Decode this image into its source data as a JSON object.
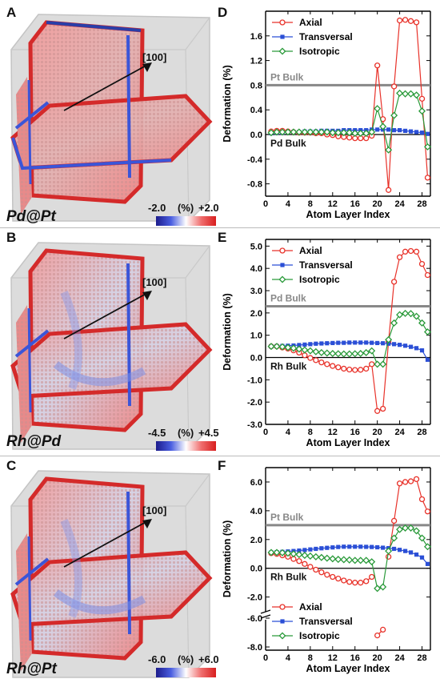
{
  "figure": {
    "colors": {
      "axial": "#e8322a",
      "transversal": "#2b4fd6",
      "isotropic": "#2a9a3a",
      "reference_line": "#888888",
      "strain_low": "#1c1c8c",
      "strain_high": "#d81e1e"
    },
    "panels": [
      {
        "id": "pdpt",
        "render_letter": "A",
        "plot_letter": "D",
        "material": "Pd@Pt",
        "direction_label": "[100]",
        "colorbar": {
          "min_label": "-2.0",
          "unit_label": "(%)",
          "max_label": "+2.0",
          "min": -2.0,
          "max": 2.0
        },
        "icons": [
          "nanocube-render-icon",
          "direction-arrow-icon"
        ]
      },
      {
        "id": "rhpd",
        "render_letter": "B",
        "plot_letter": "E",
        "material": "Rh@Pd",
        "direction_label": "[100]",
        "colorbar": {
          "min_label": "-4.5",
          "unit_label": "(%)",
          "max_label": "+4.5",
          "min": -4.5,
          "max": 4.5
        },
        "icons": [
          "nanocube-render-icon",
          "direction-arrow-icon"
        ]
      },
      {
        "id": "rhpt",
        "render_letter": "C",
        "plot_letter": "F",
        "material": "Rh@Pt",
        "direction_label": "[100]",
        "colorbar": {
          "min_label": "-6.0",
          "unit_label": "(%)",
          "max_label": "+6.0",
          "min": -6.0,
          "max": 6.0
        },
        "icons": [
          "nanocube-render-icon",
          "direction-arrow-icon"
        ]
      }
    ]
  },
  "chart_data": [
    {
      "type": "line",
      "panel": "D",
      "xlabel": "Atom Layer Index",
      "ylabel": "Deformation (%)",
      "xlim": [
        0,
        29.5
      ],
      "ylim": [
        -1.0,
        2.0
      ],
      "xticks": [
        0,
        4,
        8,
        12,
        16,
        20,
        24,
        28
      ],
      "yticks": [
        -0.8,
        -0.4,
        0.0,
        0.4,
        0.8,
        1.2,
        1.6
      ],
      "ytick_labels": [
        "-0.8",
        "-0.4",
        "0.0",
        "0.4",
        "0.8",
        "1.2",
        "1.6"
      ],
      "grid": false,
      "legend_position": "top-left",
      "reference_lines": [
        {
          "label": "Pt Bulk",
          "value": 0.8,
          "label_position": "above"
        },
        {
          "label": "Pd Bulk",
          "value": 0.0,
          "label_position": "below"
        }
      ],
      "x": [
        1,
        2,
        3,
        4,
        5,
        6,
        7,
        8,
        9,
        10,
        11,
        12,
        13,
        14,
        15,
        16,
        17,
        18,
        19,
        20,
        21,
        22,
        23,
        24,
        25,
        26,
        27,
        28,
        29
      ],
      "series": [
        {
          "name": "Axial",
          "marker": "circle",
          "values": [
            0.05,
            0.06,
            0.06,
            0.05,
            0.04,
            0.03,
            0.03,
            0.03,
            0.02,
            0.02,
            0.0,
            -0.01,
            -0.03,
            -0.04,
            -0.05,
            -0.06,
            -0.06,
            -0.06,
            -0.02,
            1.12,
            0.25,
            -0.9,
            0.78,
            1.85,
            1.86,
            1.84,
            1.82,
            0.58,
            -0.7
          ]
        },
        {
          "name": "Transversal",
          "marker": "square",
          "values": [
            0.02,
            0.03,
            0.03,
            0.04,
            0.04,
            0.04,
            0.05,
            0.05,
            0.05,
            0.06,
            0.06,
            0.06,
            0.06,
            0.07,
            0.07,
            0.07,
            0.07,
            0.07,
            0.08,
            0.08,
            0.08,
            0.08,
            0.07,
            0.07,
            0.06,
            0.05,
            0.04,
            0.03,
            0.01
          ]
        },
        {
          "name": "Isotropic",
          "marker": "diamond",
          "values": [
            0.03,
            0.04,
            0.04,
            0.04,
            0.04,
            0.04,
            0.04,
            0.04,
            0.04,
            0.04,
            0.04,
            0.03,
            0.03,
            0.03,
            0.03,
            0.02,
            0.02,
            0.02,
            0.04,
            0.42,
            0.13,
            -0.25,
            0.31,
            0.67,
            0.66,
            0.66,
            0.64,
            0.38,
            -0.2
          ]
        }
      ]
    },
    {
      "type": "line",
      "panel": "E",
      "xlabel": "Atom Layer Index",
      "ylabel": "Deformation (%)",
      "xlim": [
        0,
        29.5
      ],
      "ylim": [
        -3.0,
        5.3
      ],
      "xticks": [
        0,
        4,
        8,
        12,
        16,
        20,
        24,
        28
      ],
      "yticks": [
        -3.0,
        -2.0,
        -1.0,
        0.0,
        1.0,
        2.0,
        3.0,
        4.0,
        5.0
      ],
      "ytick_labels": [
        "-3.0",
        "-2.0",
        "-1.0",
        "0.0",
        "1.0",
        "2.0",
        "3.0",
        "4.0",
        "5.0"
      ],
      "grid": false,
      "legend_position": "top-left",
      "reference_lines": [
        {
          "label": "Pd Bulk",
          "value": 2.3,
          "label_position": "above"
        },
        {
          "label": "Rh Bulk",
          "value": 0.0,
          "label_position": "below"
        }
      ],
      "x": [
        1,
        2,
        3,
        4,
        5,
        6,
        7,
        8,
        9,
        10,
        11,
        12,
        13,
        14,
        15,
        16,
        17,
        18,
        19,
        20,
        21,
        22,
        23,
        24,
        25,
        26,
        27,
        28,
        29
      ],
      "series": [
        {
          "name": "Axial",
          "marker": "circle",
          "values": [
            0.5,
            0.5,
            0.45,
            0.4,
            0.32,
            0.22,
            0.1,
            -0.02,
            -0.12,
            -0.22,
            -0.3,
            -0.38,
            -0.44,
            -0.5,
            -0.54,
            -0.56,
            -0.55,
            -0.5,
            -0.3,
            -2.4,
            -2.3,
            0.7,
            3.4,
            4.5,
            4.75,
            4.78,
            4.75,
            4.2,
            3.7
          ]
        },
        {
          "name": "Transversal",
          "marker": "square",
          "values": [
            0.5,
            0.51,
            0.52,
            0.53,
            0.54,
            0.56,
            0.58,
            0.6,
            0.62,
            0.63,
            0.64,
            0.65,
            0.66,
            0.66,
            0.67,
            0.67,
            0.67,
            0.67,
            0.66,
            0.65,
            0.64,
            0.62,
            0.6,
            0.57,
            0.53,
            0.48,
            0.42,
            0.32,
            -0.1
          ]
        },
        {
          "name": "Isotropic",
          "marker": "diamond",
          "values": [
            0.5,
            0.5,
            0.48,
            0.45,
            0.42,
            0.38,
            0.34,
            0.3,
            0.26,
            0.22,
            0.2,
            0.18,
            0.17,
            0.16,
            0.16,
            0.17,
            0.18,
            0.22,
            0.3,
            -0.3,
            -0.3,
            0.8,
            1.55,
            1.92,
            1.98,
            1.97,
            1.85,
            1.55,
            1.15
          ]
        }
      ]
    },
    {
      "type": "line",
      "panel": "F",
      "xlabel": "Atom Layer Index",
      "ylabel": "Deformation (%)",
      "xlim": [
        0,
        29.5
      ],
      "ylim": [
        -2.8,
        7.0
      ],
      "y_axis_break": {
        "after_tick": "-2.0",
        "lower_ticks": [
          "-6.0",
          "-8.0"
        ]
      },
      "xticks": [
        0,
        4,
        8,
        12,
        16,
        20,
        24,
        28
      ],
      "yticks": [
        -2.0,
        0.0,
        2.0,
        4.0,
        6.0
      ],
      "ytick_labels": [
        "-2.0",
        "0.0",
        "2.0",
        "4.0",
        "6.0"
      ],
      "grid": false,
      "legend_position": "bottom-left",
      "reference_lines": [
        {
          "label": "Pt Bulk",
          "value": 3.0,
          "label_position": "above"
        },
        {
          "label": "Rh Bulk",
          "value": 0.0,
          "label_position": "below"
        }
      ],
      "x": [
        1,
        2,
        3,
        4,
        5,
        6,
        7,
        8,
        9,
        10,
        11,
        12,
        13,
        14,
        15,
        16,
        17,
        18,
        19,
        20,
        21,
        22,
        23,
        24,
        25,
        26,
        27,
        28,
        29
      ],
      "series": [
        {
          "name": "Axial",
          "marker": "circle",
          "values": [
            1.05,
            1.0,
            0.9,
            0.8,
            0.65,
            0.5,
            0.3,
            0.1,
            -0.1,
            -0.28,
            -0.45,
            -0.6,
            -0.72,
            -0.85,
            -0.95,
            -1.0,
            -1.0,
            -0.9,
            -0.6,
            -7.2,
            -6.8,
            0.8,
            3.3,
            5.9,
            6.0,
            6.05,
            6.2,
            4.8,
            3.95
          ]
        },
        {
          "name": "Transversal",
          "marker": "square",
          "values": [
            1.1,
            1.12,
            1.14,
            1.17,
            1.2,
            1.23,
            1.27,
            1.31,
            1.35,
            1.39,
            1.42,
            1.45,
            1.48,
            1.5,
            1.5,
            1.5,
            1.5,
            1.49,
            1.48,
            1.46,
            1.43,
            1.4,
            1.35,
            1.28,
            1.2,
            1.1,
            0.95,
            0.75,
            0.3
          ]
        },
        {
          "name": "Isotropic",
          "marker": "diamond",
          "values": [
            1.1,
            1.1,
            1.08,
            1.05,
            1.0,
            0.95,
            0.9,
            0.85,
            0.8,
            0.75,
            0.7,
            0.66,
            0.62,
            0.6,
            0.58,
            0.55,
            0.55,
            0.55,
            0.45,
            -1.4,
            -1.3,
            1.2,
            2.1,
            2.7,
            2.8,
            2.8,
            2.6,
            2.1,
            1.5
          ]
        }
      ]
    }
  ]
}
